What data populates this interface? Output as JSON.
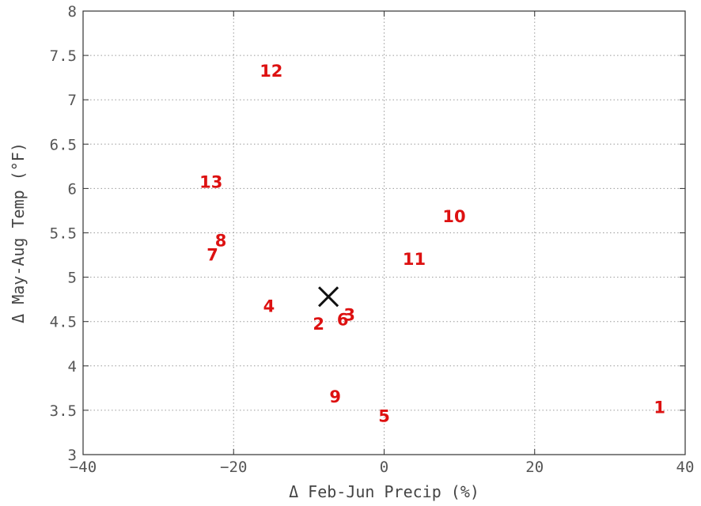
{
  "chart_data": {
    "type": "scatter",
    "title": "",
    "xlabel": "Δ Feb-Jun Precip (%)",
    "ylabel": "Δ May-Aug Temp (°F)",
    "xlim": [
      -40,
      40
    ],
    "ylim": [
      3,
      8
    ],
    "xticks": [
      -40,
      -20,
      0,
      20,
      40
    ],
    "xtick_labels": [
      "−40",
      "−20",
      "0",
      "20",
      "40"
    ],
    "yticks": [
      3,
      3.5,
      4,
      4.5,
      5,
      5.5,
      6,
      6.5,
      7,
      7.5,
      8
    ],
    "ytick_labels": [
      "3",
      "3.5",
      "4",
      "4.5",
      "5",
      "5.5",
      "6",
      "6.5",
      "7",
      "7.5",
      "8"
    ],
    "grid": true,
    "point_color": "#dd1111",
    "points": [
      {
        "label": "1",
        "x": 36.6,
        "y": 3.54
      },
      {
        "label": "2",
        "x": -8.7,
        "y": 4.48
      },
      {
        "label": "3",
        "x": -4.6,
        "y": 4.58
      },
      {
        "label": "4",
        "x": -15.3,
        "y": 4.68
      },
      {
        "label": "5",
        "x": 0.0,
        "y": 3.44
      },
      {
        "label": "6",
        "x": -5.5,
        "y": 4.53
      },
      {
        "label": "7",
        "x": -22.8,
        "y": 5.26
      },
      {
        "label": "8",
        "x": -21.7,
        "y": 5.42
      },
      {
        "label": "9",
        "x": -6.5,
        "y": 3.66
      },
      {
        "label": "10",
        "x": 9.3,
        "y": 5.69
      },
      {
        "label": "11",
        "x": 4.0,
        "y": 5.21
      },
      {
        "label": "12",
        "x": -15.0,
        "y": 7.33
      },
      {
        "label": "13",
        "x": -23.0,
        "y": 6.08
      }
    ],
    "marker": {
      "symbol": "×",
      "x": -7.4,
      "y": 4.78,
      "color": "#111111"
    }
  }
}
